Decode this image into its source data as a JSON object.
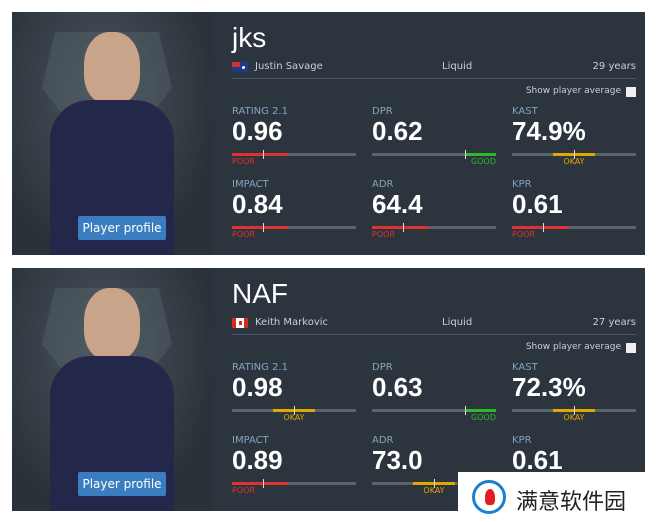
{
  "players": [
    {
      "nickname": "jks",
      "name": "Justin Savage",
      "team": "Liquid",
      "age": "29 years",
      "show_average": "Show player average",
      "profile_button": "Player profile",
      "stats": [
        {
          "label": "RATING 2.1",
          "value": "0.96",
          "rating": "POOR"
        },
        {
          "label": "DPR",
          "value": "0.62",
          "rating": "GOOD"
        },
        {
          "label": "KAST",
          "value": "74.9%",
          "rating": "OKAY"
        },
        {
          "label": "IMPACT",
          "value": "0.84",
          "rating": "POOR"
        },
        {
          "label": "ADR",
          "value": "64.4",
          "rating": "POOR"
        },
        {
          "label": "KPR",
          "value": "0.61",
          "rating": "POOR"
        }
      ]
    },
    {
      "nickname": "NAF",
      "name": "Keith Markovic",
      "team": "Liquid",
      "age": "27 years",
      "show_average": "Show player average",
      "profile_button": "Player profile",
      "stats": [
        {
          "label": "RATING 2.1",
          "value": "0.98",
          "rating": "OKAY"
        },
        {
          "label": "DPR",
          "value": "0.63",
          "rating": "GOOD"
        },
        {
          "label": "KAST",
          "value": "72.3%",
          "rating": "OKAY"
        },
        {
          "label": "IMPACT",
          "value": "0.89",
          "rating": "POOR"
        },
        {
          "label": "ADR",
          "value": "73.0",
          "rating": "OKAY"
        },
        {
          "label": "KPR",
          "value": "0.61"
        }
      ]
    }
  ],
  "watermark": "满意软件园"
}
